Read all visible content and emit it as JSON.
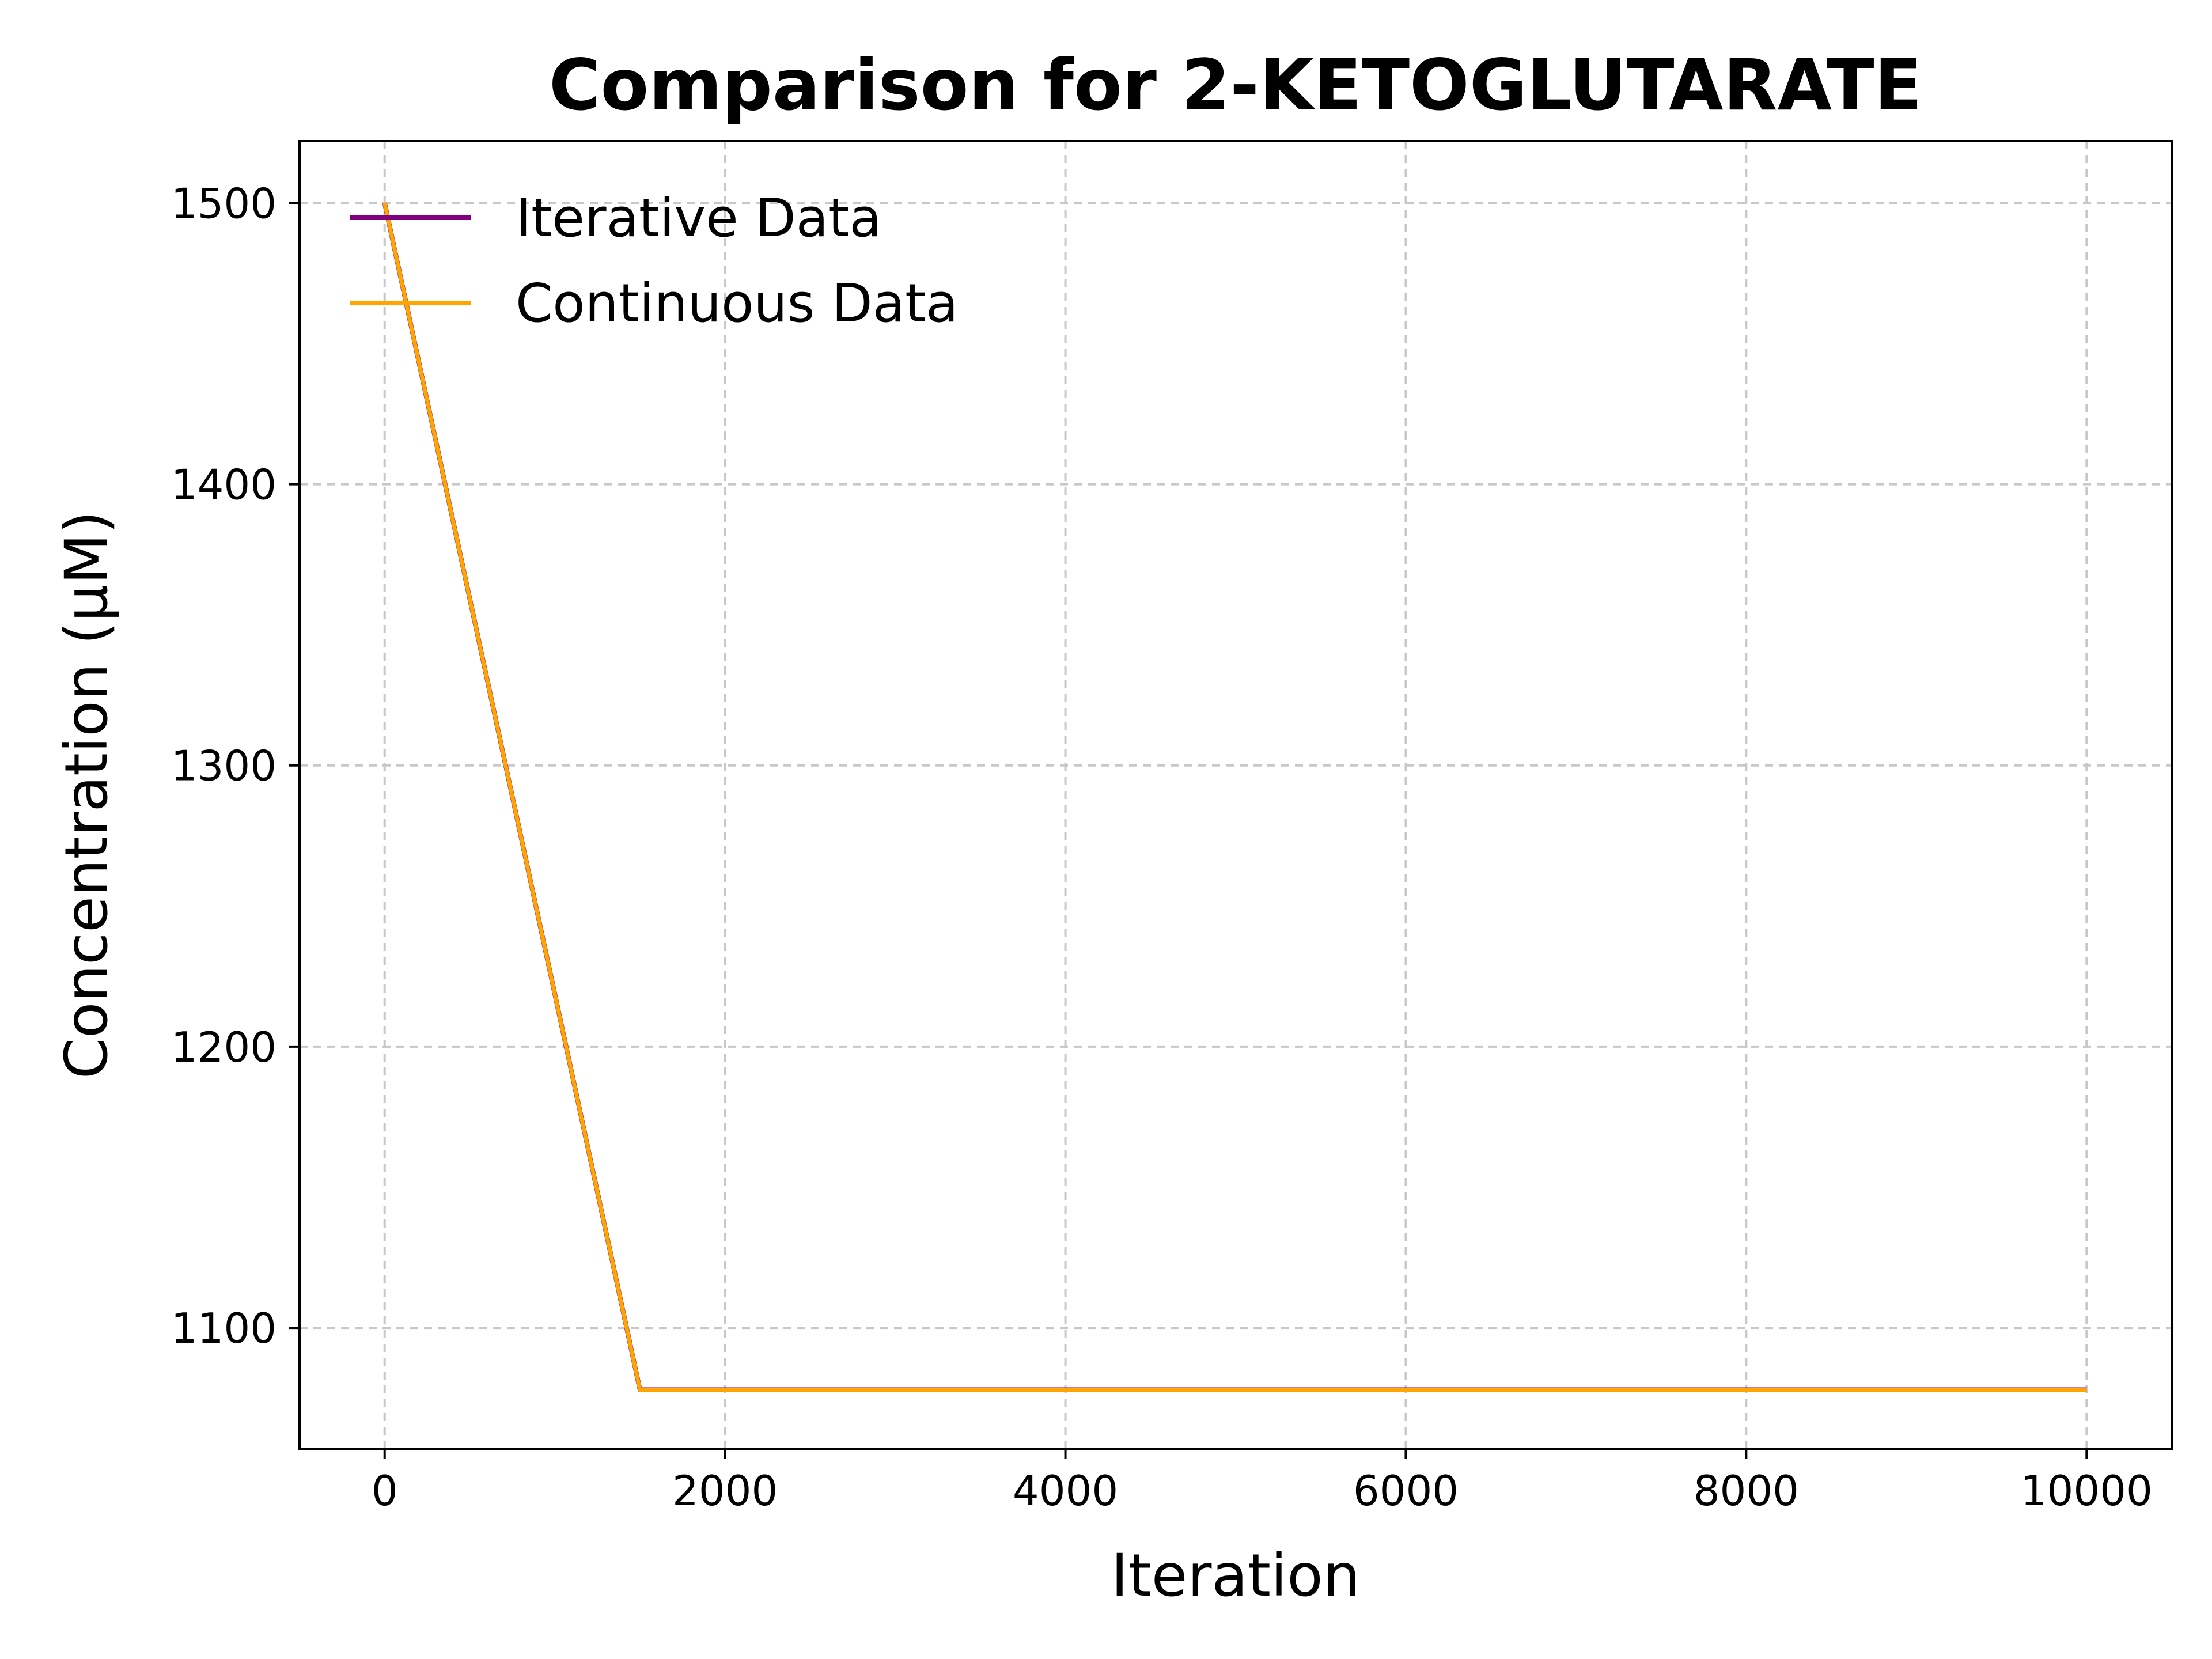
{
  "chart_data": {
    "type": "line",
    "title": "Comparison for 2-KETOGLUTARATE",
    "xlabel": "Iteration",
    "ylabel": "Concentration (μM)",
    "xlim": [
      -500,
      10500
    ],
    "ylim": [
      1057,
      1522
    ],
    "xticks": [
      0,
      2000,
      4000,
      6000,
      8000,
      10000
    ],
    "yticks": [
      1100,
      1200,
      1300,
      1400,
      1500
    ],
    "grid": true,
    "legend_position": "upper-left",
    "series": [
      {
        "name": "Iterative Data",
        "color": "#800080",
        "x": [
          0,
          1500,
          10000
        ],
        "y": [
          1500,
          1078,
          1078
        ]
      },
      {
        "name": "Continuous Data",
        "color": "#ffa500",
        "x": [
          0,
          1500,
          10000
        ],
        "y": [
          1500,
          1078,
          1078
        ]
      }
    ]
  }
}
